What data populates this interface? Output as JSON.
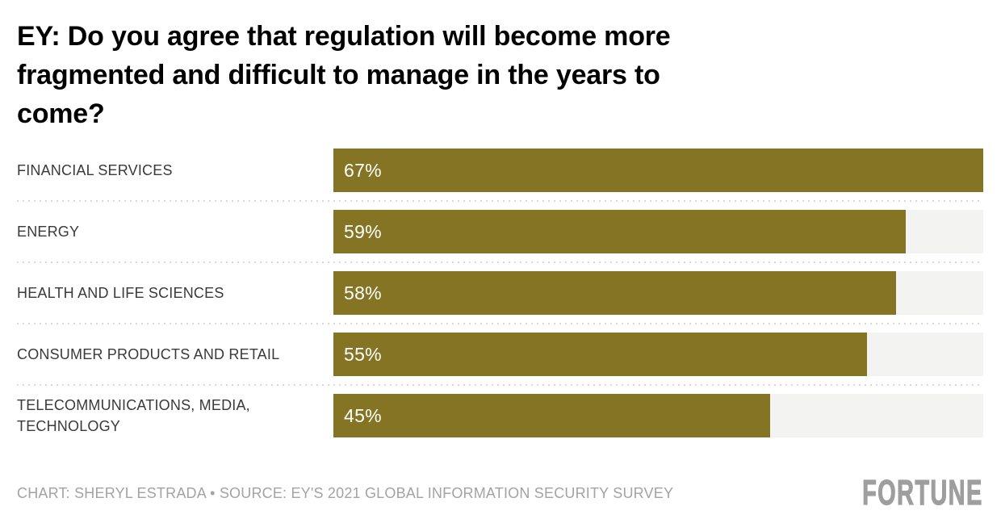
{
  "header": {
    "title": "EY: Do you agree that regulation will become more\nfragmented and difficult to manage in the years to\ncome?"
  },
  "chart_data": {
    "type": "bar",
    "orientation": "horizontal",
    "title": "EY: Do you agree that regulation will become more fragmented and difficult to manage in the years to come?",
    "categories": [
      "FINANCIAL SERVICES",
      "ENERGY",
      "HEALTH AND LIFE SCIENCES",
      "CONSUMER PRODUCTS AND RETAIL",
      "TELECOMMUNICATIONS, MEDIA, TECHNOLOGY"
    ],
    "categories_display": [
      "FINANCIAL SERVICES",
      "ENERGY",
      "HEALTH AND LIFE SCIENCES",
      "CONSUMER PRODUCTS AND RETAIL",
      "TELECOMMUNICATIONS, MEDIA,\nTECHNOLOGY"
    ],
    "values": [
      67,
      59,
      58,
      55,
      45
    ],
    "value_labels": [
      "67%",
      "59%",
      "58%",
      "55%",
      "45%"
    ],
    "value_suffix": "%",
    "xlim": [
      0,
      67
    ],
    "xlabel": "",
    "ylabel": "",
    "grid": false,
    "legend": false,
    "bar_color": "#867425",
    "track_color": "#f3f3f1",
    "value_label_color": "#ffffff",
    "separator_color": "#d9d9d7"
  },
  "footer": {
    "credit": "CHART: SHERYL ESTRADA • SOURCE: EY'S 2021 GLOBAL INFORMATION SECURITY SURVEY",
    "brand": "FORTUNE"
  }
}
